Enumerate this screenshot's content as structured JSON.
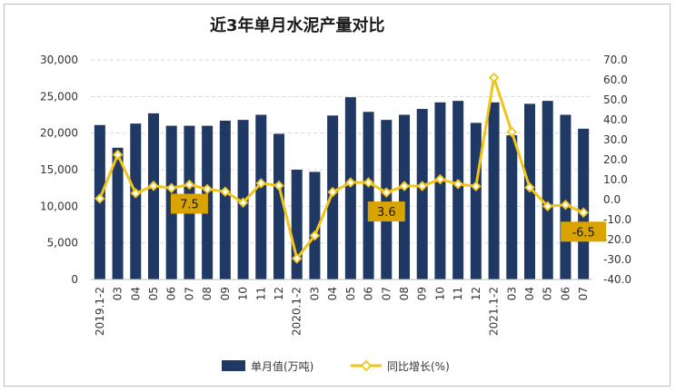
{
  "chart_data": {
    "type": "bar",
    "title": "近3年单月水泥产量对比",
    "categories": [
      "2019.1-2",
      "03",
      "04",
      "05",
      "06",
      "07",
      "08",
      "09",
      "10",
      "11",
      "12",
      "2020.1-2",
      "03",
      "04",
      "05",
      "06",
      "07",
      "08",
      "09",
      "10",
      "11",
      "12",
      "2021.1-2",
      "03",
      "04",
      "05",
      "06",
      "07"
    ],
    "series": [
      {
        "name": "单月值(万吨)",
        "axis": "left",
        "type": "bar",
        "color": "#1f3864",
        "values": [
          21100,
          18000,
          21300,
          22700,
          21000,
          21000,
          21000,
          21700,
          21800,
          22500,
          19900,
          15000,
          14700,
          22400,
          24900,
          22900,
          21800,
          22500,
          23300,
          24200,
          24400,
          21400,
          24200,
          19700,
          24000,
          24400,
          22500,
          20600
        ]
      },
      {
        "name": "同比增长(%)",
        "axis": "right",
        "type": "line",
        "color": "#f0c419",
        "values": [
          0.5,
          22.5,
          3.2,
          6.9,
          5.8,
          7.5,
          5.3,
          4.0,
          -1.5,
          8.2,
          7.0,
          -29.5,
          -18.0,
          3.8,
          8.6,
          8.6,
          3.6,
          6.8,
          6.8,
          10.2,
          7.8,
          6.7,
          61.1,
          33.9,
          6.1,
          -3.3,
          -2.6,
          -6.5
        ]
      }
    ],
    "y_left": {
      "ticks": [
        "0",
        "5,000",
        "10,000",
        "15,000",
        "20,000",
        "25,000",
        "30,000"
      ],
      "range": [
        0,
        30000
      ]
    },
    "y_right": {
      "ticks": [
        "-40.0",
        "-30.0",
        "-20.0",
        "-10.0",
        "0.0",
        "10.0",
        "20.0",
        "30.0",
        "40.0",
        "50.0",
        "60.0",
        "70.0"
      ],
      "range": [
        -40,
        70
      ]
    },
    "callouts": [
      {
        "label": "7.5",
        "index": 5
      },
      {
        "label": "3.6",
        "index": 16
      },
      {
        "label": "-6.5",
        "index": 27
      }
    ],
    "legend": {
      "position": "bottom",
      "items": [
        "单月值(万吨)",
        "同比增长(%)"
      ]
    },
    "grid": true
  }
}
